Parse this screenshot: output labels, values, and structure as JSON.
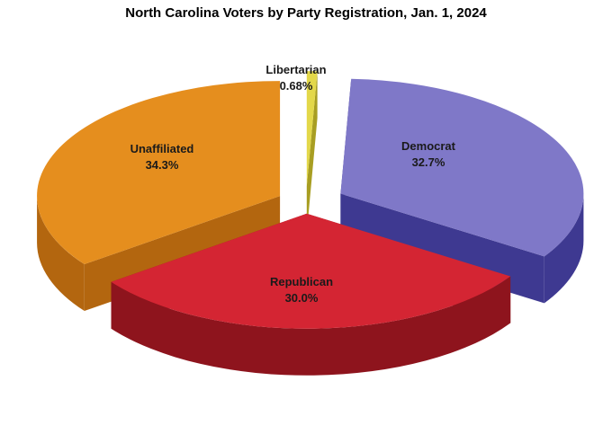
{
  "chart_data": {
    "type": "pie",
    "title": "North Carolina Voters by Party Registration, Jan. 1, 2024",
    "exploded": true,
    "three_d": true,
    "slices": [
      {
        "name": "Libertarian",
        "label": "0.68%",
        "value": 0.68,
        "color": "#e3d84a",
        "side_color": "#a89e22"
      },
      {
        "name": "Democrat",
        "label": "32.7%",
        "value": 32.7,
        "color": "#7f78c8",
        "side_color": "#3e3991"
      },
      {
        "name": "Republican",
        "label": "30.0%",
        "value": 30.0,
        "color": "#d42533",
        "side_color": "#8e141d"
      },
      {
        "name": "Unaffiliated",
        "label": "34.3%",
        "value": 34.3,
        "color": "#e58e1e",
        "side_color": "#b3660f"
      }
    ]
  }
}
